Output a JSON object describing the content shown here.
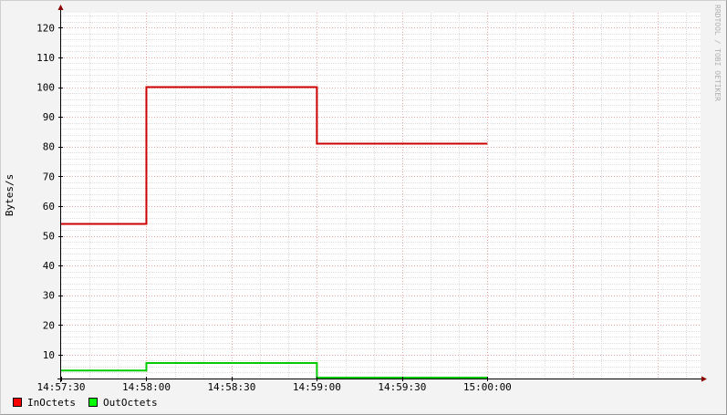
{
  "chart_data": {
    "type": "line",
    "step": true,
    "ylabel": "Bytes/s",
    "watermark": "RRDTOOL / TOBI OETIKER",
    "x_domain": [
      "14:57:30",
      "15:01:15"
    ],
    "x_ticks": [
      "14:57:30",
      "14:58:00",
      "14:58:30",
      "14:59:00",
      "14:59:30",
      "15:00:00"
    ],
    "y_ticks": [
      10,
      20,
      30,
      40,
      50,
      60,
      70,
      80,
      90,
      100,
      110,
      120
    ],
    "ylim": [
      2,
      125
    ],
    "grid": true,
    "legend_position": "bottom-left",
    "background_color": "#f3f3f3",
    "plot_background": "#ffffff",
    "series": [
      {
        "name": "InOctets",
        "color": "#cc0000",
        "swatch_color": "#ff0000",
        "points": [
          {
            "x": "14:57:30",
            "y": 54
          },
          {
            "x": "14:58:00",
            "y": 100
          },
          {
            "x": "14:59:00",
            "y": 81
          },
          {
            "x": "15:00:00",
            "y": 81
          }
        ]
      },
      {
        "name": "OutOctets",
        "color": "#00cc00",
        "swatch_color": "#00ff00",
        "points": [
          {
            "x": "14:57:30",
            "y": 4.7
          },
          {
            "x": "14:58:00",
            "y": 7.2
          },
          {
            "x": "14:59:00",
            "y": 2.3
          },
          {
            "x": "15:00:00",
            "y": 2.3
          }
        ]
      }
    ]
  }
}
